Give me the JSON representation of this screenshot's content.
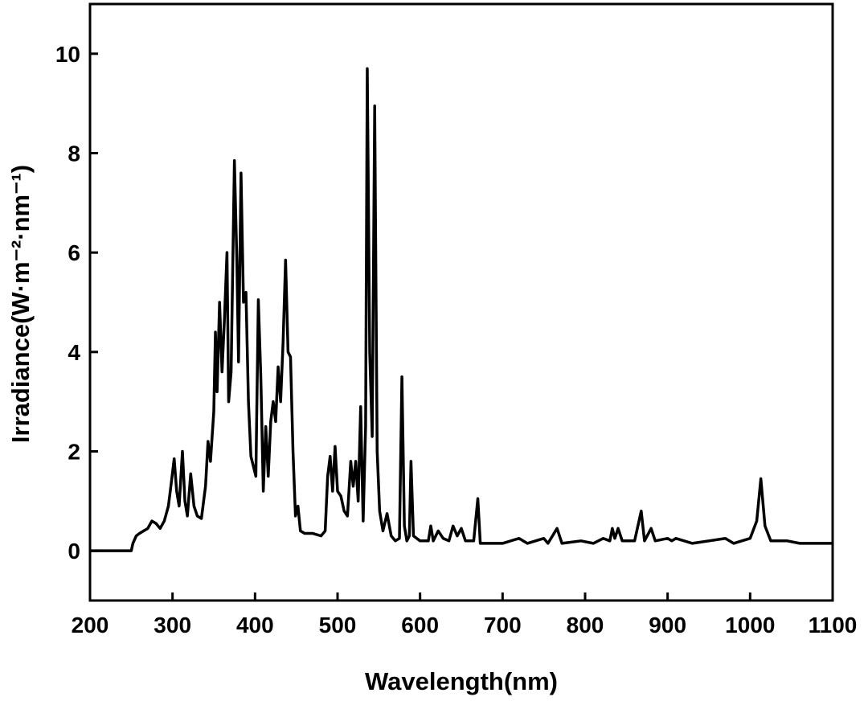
{
  "chart_data": {
    "type": "line",
    "x_label": "Wavelength(nm)",
    "y_label": "Irradiance(W·m⁻²·nm⁻¹)",
    "xlim": [
      200,
      1100
    ],
    "ylim": [
      -1,
      11
    ],
    "xticks": [
      200,
      300,
      400,
      500,
      600,
      700,
      800,
      900,
      1000,
      1100
    ],
    "yticks": [
      0,
      2,
      4,
      6,
      8,
      10
    ],
    "color": "#000000",
    "x": [
      200,
      250,
      252,
      256,
      260,
      265,
      270,
      275,
      280,
      285,
      290,
      295,
      298,
      302,
      305,
      308,
      312,
      315,
      318,
      322,
      326,
      330,
      335,
      340,
      343,
      346,
      350,
      352,
      354,
      357,
      360,
      363,
      366,
      368,
      371,
      375,
      378,
      380,
      383,
      386,
      389,
      392,
      395,
      398,
      401,
      404,
      407,
      410,
      413,
      416,
      419,
      422,
      425,
      428,
      431,
      434,
      437,
      440,
      443,
      446,
      449,
      452,
      455,
      460,
      470,
      480,
      485,
      488,
      491,
      494,
      497,
      500,
      504,
      508,
      512,
      516,
      519,
      522,
      525,
      528,
      531,
      534,
      536,
      539,
      542,
      545,
      548,
      551,
      555,
      560,
      565,
      570,
      575,
      578,
      581,
      584,
      587,
      589,
      592,
      600,
      610,
      613,
      616,
      622,
      628,
      635,
      640,
      645,
      650,
      655,
      665,
      670,
      673,
      700,
      720,
      730,
      750,
      755,
      766,
      772,
      795,
      810,
      822,
      830,
      833,
      836,
      840,
      845,
      860,
      868,
      872,
      880,
      885,
      900,
      905,
      910,
      930,
      970,
      980,
      1000,
      1008,
      1013,
      1018,
      1025,
      1045,
      1060,
      1100
    ],
    "y": [
      0,
      0,
      0.15,
      0.3,
      0.35,
      0.4,
      0.45,
      0.6,
      0.55,
      0.45,
      0.6,
      0.9,
      1.3,
      1.85,
      1.2,
      0.9,
      2.0,
      1.0,
      0.7,
      1.55,
      0.9,
      0.7,
      0.65,
      1.3,
      2.2,
      1.8,
      2.8,
      4.4,
      3.2,
      5.0,
      3.6,
      4.7,
      6.0,
      3.0,
      3.6,
      7.85,
      5.8,
      3.8,
      7.6,
      5.0,
      5.2,
      3.0,
      1.9,
      1.7,
      1.5,
      5.05,
      3.5,
      1.2,
      2.5,
      1.5,
      2.6,
      3.0,
      2.6,
      3.7,
      3.0,
      4.2,
      5.85,
      4.0,
      3.9,
      2.0,
      0.7,
      0.9,
      0.4,
      0.35,
      0.35,
      0.3,
      0.4,
      1.5,
      1.9,
      1.2,
      2.1,
      1.2,
      1.1,
      0.8,
      0.7,
      1.8,
      1.3,
      1.8,
      1.0,
      2.9,
      0.6,
      2.5,
      9.7,
      4.0,
      2.3,
      8.95,
      2.0,
      0.8,
      0.4,
      0.75,
      0.3,
      0.2,
      0.25,
      3.5,
      0.5,
      0.2,
      0.3,
      1.8,
      0.3,
      0.2,
      0.2,
      0.5,
      0.2,
      0.4,
      0.25,
      0.2,
      0.5,
      0.3,
      0.45,
      0.2,
      0.2,
      1.05,
      0.15,
      0.15,
      0.25,
      0.15,
      0.25,
      0.15,
      0.45,
      0.15,
      0.2,
      0.15,
      0.25,
      0.2,
      0.45,
      0.25,
      0.45,
      0.2,
      0.2,
      0.8,
      0.2,
      0.45,
      0.2,
      0.25,
      0.2,
      0.25,
      0.15,
      0.25,
      0.15,
      0.25,
      0.6,
      1.45,
      0.5,
      0.2,
      0.2,
      0.15,
      0.15
    ]
  }
}
